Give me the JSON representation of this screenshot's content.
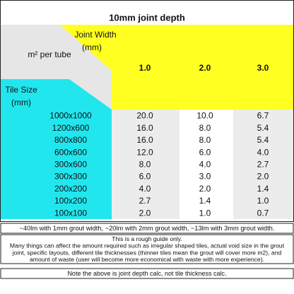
{
  "title": "10mm joint depth",
  "header": {
    "unit_label": "m² per tube",
    "joint_width_label": "Joint Width",
    "joint_width_unit": "(mm)",
    "tile_size_label": "Tile Size",
    "tile_size_unit": "(mm)",
    "columns": [
      "1.0",
      "2.0",
      "3.0"
    ]
  },
  "table": {
    "rows": [
      [
        "1000x1000",
        "20.0",
        "10.0",
        "6.7"
      ],
      [
        "1200x600",
        "16.0",
        "8.0",
        "5.4"
      ],
      [
        "800x800",
        "16.0",
        "8.0",
        "5.4"
      ],
      [
        "600x600",
        "12.0",
        "6.0",
        "4.0"
      ],
      [
        "300x600",
        "8.0",
        "4.0",
        "2.7"
      ],
      [
        "300x300",
        "6.0",
        "3.0",
        "2.0"
      ],
      [
        "200x200",
        "4.0",
        "2.0",
        "1.4"
      ],
      [
        "100x200",
        "2.7",
        "1.4",
        "1.0"
      ],
      [
        "100x100",
        "2.0",
        "1.0",
        "0.7"
      ]
    ]
  },
  "coverage_note": "~40lm with 1mm grout width, ~20lm with 2mm grout width, ~13lm with 3mm grout width.",
  "guide_note": {
    "lines": [
      "This is a rough guide only.",
      "Many things can affect the amount required such as irregular shaped tiles, actual void size in the grout",
      "joint, specific layouts, different tile thicknesses (thinner tiles mean the grout will cover more m2), and",
      "amount of waste (user will become more economical with waste with more experience)."
    ]
  },
  "footer_note": "Note the above is joint depth calc, not tile thickness calc."
}
